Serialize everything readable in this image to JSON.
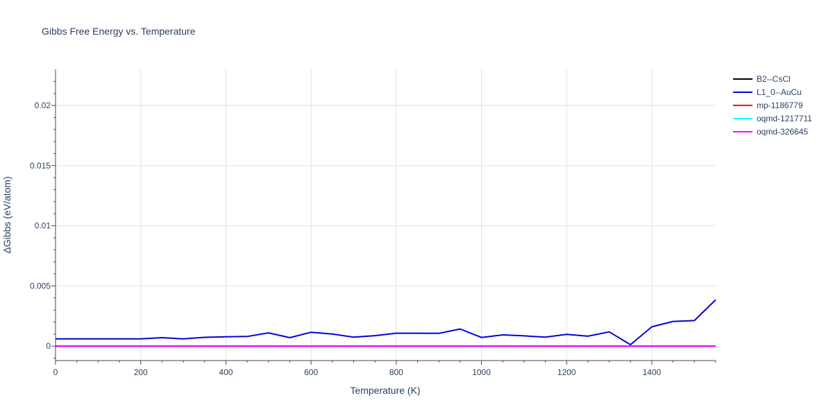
{
  "chart_data": {
    "type": "line",
    "title": "Gibbs Free Energy vs. Temperature",
    "xlabel": "Temperature (K)",
    "ylabel": "ΔGibbs (eV/atom)",
    "xlim": [
      0,
      1550
    ],
    "ylim": [
      -0.0012,
      0.023
    ],
    "xticks": [
      0,
      200,
      400,
      600,
      800,
      1000,
      1200,
      1400
    ],
    "yticks": [
      0,
      0.005,
      0.01,
      0.015,
      0.02
    ],
    "ytick_labels": [
      "0",
      "0.005",
      "0.01",
      "0.015",
      "0.02"
    ],
    "grid": true,
    "legend_position": "top-right",
    "series": [
      {
        "name": "B2--CsCl",
        "color": "#000000",
        "x": [
          0,
          1550
        ],
        "y": [
          0,
          0
        ]
      },
      {
        "name": "L1_0--AuCu",
        "color": "#0000dd",
        "x": [
          0,
          50,
          100,
          150,
          200,
          250,
          300,
          350,
          400,
          450,
          500,
          550,
          600,
          650,
          700,
          750,
          800,
          850,
          900,
          950,
          1000,
          1050,
          1100,
          1150,
          1200,
          1250,
          1300,
          1350,
          1400,
          1450,
          1500,
          1550
        ],
        "y": [
          0.0006,
          0.0006,
          0.0006,
          0.0006,
          0.0006,
          0.0007,
          0.0006,
          0.00073,
          0.00077,
          0.0008,
          0.0011,
          0.0007,
          0.00115,
          0.001,
          0.00074,
          0.00087,
          0.00107,
          0.00107,
          0.00106,
          0.00142,
          0.00072,
          0.00093,
          0.00085,
          0.00075,
          0.00097,
          0.00082,
          0.00118,
          0.00012,
          0.0016,
          0.00205,
          0.00212,
          0.00385
        ]
      },
      {
        "name": "mp-1186779",
        "color": "#ff0000",
        "x": [
          0,
          1550
        ],
        "y": [
          0,
          0
        ]
      },
      {
        "name": "oqmd-1217711",
        "color": "#00ffff",
        "x": [
          0,
          1550
        ],
        "y": [
          0,
          0
        ]
      },
      {
        "name": "oqmd-326645",
        "color": "#ff00ff",
        "x": [
          0,
          1550
        ],
        "y": [
          0,
          0
        ]
      }
    ]
  }
}
